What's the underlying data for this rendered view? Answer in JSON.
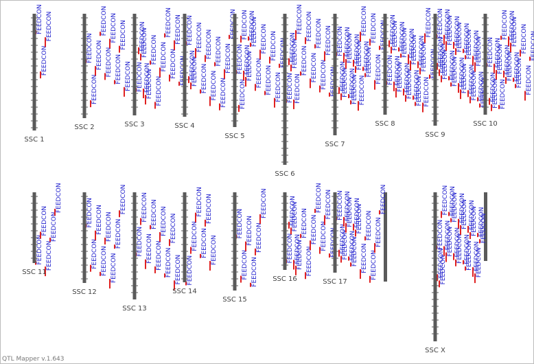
{
  "chromosomes": [
    {
      "name": "SSC 1",
      "qtls": [
        "FEEDCON",
        "FEEDCON",
        "FEEDCON"
      ]
    },
    {
      "name": "SSC 2",
      "qtls": [
        "FEEDCON",
        "FEEDCON",
        "FEEDCON",
        "FEEDCON",
        "FEEDCON",
        "FEEDCON",
        "FEEDCON",
        "FEEDCON",
        "FEEDCON"
      ]
    },
    {
      "name": "SSC 3",
      "qtls": [
        "FEEDCON",
        "FEEDCON",
        "FEEDCON",
        "FEEDCON",
        "FEEDCON",
        "FEEDCON",
        "FEEDCON",
        "FEEDCON",
        "FEEDCON",
        "FEEDCON",
        "FEEDCON",
        "FEEDCON"
      ]
    },
    {
      "name": "SSC 4",
      "qtls": [
        "FEEDCON",
        "FEEDCON",
        "FEEDCON",
        "FEEDCON",
        "FEEDCON",
        "FEEDCON",
        "FEEDCON",
        "FEEDCON",
        "FEEDCON",
        "FEEDCON",
        "FEEDCON"
      ]
    },
    {
      "name": "SSC 5",
      "qtls": [
        "FEEDCON",
        "FEEDCON",
        "FEEDCON",
        "FEEDCON",
        "FEEDCON",
        "FEEDCON",
        "FEEDCON",
        "FEEDCON",
        "FEEDCON",
        "FEEDCON",
        "FEEDCON",
        "FEEDCON",
        "FEEDCON"
      ]
    },
    {
      "name": "SSC 6",
      "qtls": [
        "FEEDCON",
        "FEEDCON",
        "FEEDCON",
        "FEEDCON",
        "FEEDCON",
        "FEEDCON",
        "FEEDCON",
        "FEEDCON",
        "FEEDCON",
        "FEEDCON",
        "FEEDCON",
        "FEEDCON"
      ]
    },
    {
      "name": "SSC 7",
      "qtls": [
        "FEEDCON",
        "FEEDCON",
        "FEEDCON",
        "FEEDCON",
        "FEEDCON",
        "FEEDCON",
        "FEEDCON",
        "FEEDCON",
        "FEEDCON",
        "FEEDCON",
        "FEEDCON",
        "FEEDCON",
        "FEEDCON",
        "FEEDCON",
        "FEEDCON",
        "FEEDCON"
      ]
    },
    {
      "name": "SSC 8",
      "qtls": [
        "FEEDCON",
        "FEEDCON",
        "FEEDCON",
        "FEEDCON",
        "FEEDCON",
        "FEEDCON",
        "FEEDCON",
        "FEEDCON",
        "FEEDCON",
        "FEEDCON",
        "FEEDCON",
        "FEEDCON",
        "FEEDCON",
        "FEEDCON",
        "FEEDCON",
        "FEEDCON",
        "FEEDCON",
        "FEEDCON"
      ]
    },
    {
      "name": "SSC 9",
      "qtls": [
        "FEEDCON",
        "FEEDCON",
        "FEEDCON",
        "FEEDCON",
        "FEEDCON",
        "FEEDCON",
        "FEEDCON",
        "FEEDCON",
        "FEEDCON",
        "FEEDCON",
        "FEEDCON",
        "FEEDCON",
        "FEEDCON",
        "FEEDCON",
        "FEEDCON",
        "FEEDCON",
        "FEEDCON",
        "FEEDCON",
        "FEEDCON",
        "FEEDCON"
      ]
    },
    {
      "name": "SSC 10",
      "qtls": [
        "FEEDCON",
        "FEEDCON",
        "FEEDCON",
        "FEEDCON",
        "FEEDCON",
        "FEEDCON",
        "FEEDCON",
        "FEEDCON",
        "FEEDCON",
        "FEEDCON",
        "FEEDCON",
        "FEEDCON",
        "FEEDCON",
        "FEEDCON",
        "FEEDCON",
        "FEEDCON"
      ]
    },
    {
      "name": "SSC 11",
      "qtls": [
        "FEEDCON",
        "FEEDCON",
        "FEEDCON",
        "FEEDCON",
        "FEEDCON"
      ]
    },
    {
      "name": "SSC 12",
      "qtls": [
        "FEEDCON",
        "FEEDCON",
        "FEEDCON",
        "FEEDCON",
        "FEEDCON",
        "FEEDCON",
        "FEEDCON",
        "FEEDCON"
      ]
    },
    {
      "name": "SSC 13",
      "qtls": [
        "FEEDCON",
        "FEEDCON",
        "FEEDCON",
        "FEEDCON",
        "FEEDCON",
        "FEEDCON",
        "FEEDCON",
        "FEEDCON",
        "FEEDCON"
      ]
    },
    {
      "name": "SSC 14",
      "qtls": [
        "FEEDCON",
        "FEEDCON",
        "FEEDCON",
        "FEEDCON",
        "FEEDCON",
        "FEEDCON"
      ]
    },
    {
      "name": "SSC 15",
      "qtls": [
        "FEEDCON",
        "FEEDCON",
        "FEEDCON",
        "FEEDCON",
        "FEEDCON",
        "FEEDCON"
      ]
    },
    {
      "name": "SSC 16",
      "qtls": [
        "FEEDCON",
        "FEEDCON",
        "FEEDCON",
        "FEEDCON",
        "FEEDCON",
        "FEEDCON",
        "FEEDCON",
        "FEEDCON",
        "FEEDCON",
        "FEEDCON",
        "FEEDCON",
        "FEEDCON"
      ]
    },
    {
      "name": "SSC 17",
      "qtls": [
        "FEEDCON",
        "FEEDCON",
        "FEEDCON",
        "FEEDCON",
        "FEEDCON",
        "FEEDCON",
        "FEEDCON",
        "FEEDCON",
        "FEEDCON",
        "FEEDCON",
        "FEEDCON",
        "FEEDCON",
        "FEEDCON",
        "FEEDCON"
      ]
    },
    {
      "name": "SSC X",
      "qtls": [
        "FEEDCON",
        "FEEDCON",
        "FEEDCON",
        "FEEDCON",
        "FEEDCON",
        "FEEDCON",
        "FEEDCON",
        "FEEDCON",
        "FEEDCON",
        "FEEDCON",
        "FEEDCON",
        "FEEDCON",
        "FEEDCON",
        "FEEDCON",
        "FEEDCON",
        "FEEDCON",
        "FEEDCON",
        "FEEDCON",
        "FEEDCON",
        "FEEDCON"
      ]
    }
  ],
  "footer": "QTL Mapper v.1.643"
}
